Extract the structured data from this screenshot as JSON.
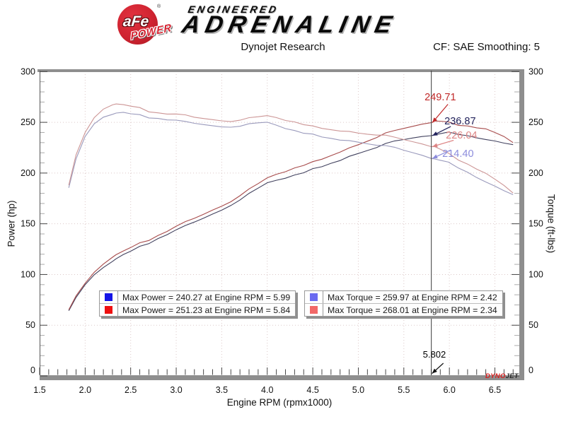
{
  "brand": {
    "circle_text": "aFe",
    "reg": "®",
    "banner_text": "POWER",
    "line1": "ENGINEERED",
    "line2": "ADRENALINE"
  },
  "header": {
    "title": "Dynojet Research",
    "right": "CF: SAE Smoothing: 5"
  },
  "watermark": {
    "part1": "DYNO",
    "part2": "JET",
    "color1": "#d81d1d",
    "color2": "#2a2a2a"
  },
  "legend": {
    "boxes": [
      {
        "rows": [
          {
            "swatch": "#1414e6",
            "label": "Max Power = 240.27 at Engine RPM = 5.99"
          },
          {
            "swatch": "#ee1010",
            "label": "Max Power = 251.23 at Engine RPM = 5.84"
          }
        ]
      },
      {
        "rows": [
          {
            "swatch": "#6a6af0",
            "label": "Max Torque = 259.97 at Engine RPM = 2.42"
          },
          {
            "swatch": "#f26868",
            "label": "Max Torque = 268.01 at Engine RPM = 2.34"
          }
        ]
      }
    ]
  },
  "chart_data": {
    "type": "line",
    "title": "Dynojet Research",
    "xlabel": "Engine RPM (rpmx1000)",
    "ylabel_left": "Power (hp)",
    "ylabel_right": "Torque (ft-lbs)",
    "xlim": [
      1.5,
      6.8
    ],
    "ylim": [
      0,
      300
    ],
    "x_ticks": [
      1.5,
      2.0,
      2.5,
      3.0,
      3.5,
      4.0,
      4.5,
      5.0,
      5.5,
      6.0,
      6.5
    ],
    "y_ticks": [
      0,
      50,
      100,
      150,
      200,
      250,
      300
    ],
    "grid": "dotted",
    "legend_position": "bottom-center",
    "x": [
      1.82,
      1.9,
      2.0,
      2.1,
      2.2,
      2.3,
      2.34,
      2.42,
      2.5,
      2.6,
      2.7,
      2.8,
      2.9,
      3.0,
      3.1,
      3.2,
      3.3,
      3.4,
      3.5,
      3.6,
      3.7,
      3.8,
      3.9,
      4.0,
      4.1,
      4.2,
      4.3,
      4.4,
      4.5,
      4.6,
      4.7,
      4.8,
      4.9,
      5.0,
      5.1,
      5.2,
      5.3,
      5.4,
      5.5,
      5.6,
      5.7,
      5.8,
      5.84,
      5.9,
      5.99,
      6.1,
      6.2,
      6.3,
      6.4,
      6.5,
      6.6,
      6.7
    ],
    "series": [
      {
        "name": "Max Power = 240.27 at Engine RPM = 5.99",
        "axis": "left",
        "unit": "hp",
        "legend_swatch": "#1414e6",
        "color": "#41415e",
        "max": 240.27,
        "max_at": 5.99,
        "values": [
          64.3,
          77.4,
          89.9,
          99.2,
          106.8,
          113.0,
          115.4,
          119.8,
          123.0,
          127.2,
          131.1,
          135.1,
          139.4,
          143.9,
          147.9,
          151.7,
          155.8,
          159.9,
          163.9,
          168.3,
          173.3,
          179.4,
          185.6,
          190.8,
          193.2,
          195.1,
          197.7,
          200.6,
          203.9,
          206.7,
          209.9,
          212.9,
          216.4,
          219.9,
          222.9,
          225.7,
          228.6,
          231.3,
          233.0,
          234.6,
          235.8,
          236.9,
          237.7,
          238.7,
          240.3,
          238.0,
          236.4,
          235.0,
          233.5,
          231.6,
          229.5,
          228.0
        ]
      },
      {
        "name": "Max Power = 251.23 at Engine RPM = 5.84",
        "axis": "left",
        "unit": "hp",
        "legend_swatch": "#ee1010",
        "color": "#a74b4b",
        "max": 251.23,
        "max_at": 5.84,
        "values": [
          65.2,
          78.9,
          91.4,
          101.6,
          110.2,
          117.1,
          119.4,
          123.3,
          126.6,
          130.7,
          134.2,
          138.1,
          142.6,
          147.4,
          151.7,
          155.4,
          159.6,
          163.8,
          167.9,
          172.0,
          177.5,
          183.8,
          190.1,
          195.7,
          199.1,
          201.5,
          204.7,
          207.8,
          210.8,
          214.1,
          217.5,
          221.2,
          224.8,
          228.5,
          232.1,
          235.6,
          239.0,
          241.6,
          244.0,
          246.1,
          248.0,
          249.7,
          251.2,
          251.0,
          250.3,
          247.0,
          246.0,
          244.9,
          244.0,
          240.0,
          236.0,
          230.0
        ]
      },
      {
        "name": "Max Torque = 259.97 at Engine RPM = 2.42",
        "axis": "right",
        "unit": "ft-lbs",
        "legend_swatch": "#6a6af0",
        "color": "#9a9abc",
        "max": 259.97,
        "max_at": 2.42,
        "values": [
          185.5,
          214,
          236,
          248,
          255,
          258,
          259,
          259.97,
          258.5,
          257,
          255,
          253.5,
          252.5,
          252,
          250.5,
          249,
          248,
          247,
          246,
          245.5,
          246,
          248,
          250,
          250.5,
          247.5,
          244,
          241.5,
          239.5,
          238,
          236,
          234.5,
          233,
          232,
          231,
          229.5,
          228,
          226.5,
          225,
          222.5,
          220,
          217.3,
          214.5,
          213.8,
          212.5,
          210.67,
          204.9,
          200.3,
          195.9,
          191.6,
          187.1,
          182.6,
          178.7
        ]
      },
      {
        "name": "Max Torque = 268.01 at Engine RPM = 2.34",
        "axis": "right",
        "unit": "ft-lbs",
        "legend_swatch": "#f26868",
        "color": "#cc9595",
        "max": 268.01,
        "max_at": 2.34,
        "values": [
          188,
          218,
          240,
          254,
          263,
          267.3,
          268.01,
          267.5,
          266,
          264,
          261,
          259,
          258.3,
          258,
          257,
          255,
          254,
          253,
          252,
          251,
          252,
          254,
          256,
          257,
          255,
          252,
          250,
          248,
          246,
          244.5,
          243,
          242,
          241,
          240,
          239,
          238,
          236.8,
          235,
          233,
          230.8,
          228.5,
          226.1,
          225.93,
          223.4,
          219.5,
          212.7,
          208.4,
          204.2,
          200.2,
          193.9,
          187.8,
          180.3
        ]
      }
    ],
    "cursor": {
      "rpm": 5.802,
      "label": "5.802",
      "readouts": [
        {
          "label": "249.71",
          "value": 249.71,
          "color": "#c02828"
        },
        {
          "label": "236.87",
          "value": 236.87,
          "color": "#23235c"
        },
        {
          "label": "226.04",
          "value": 226.04,
          "color": "#dd8484"
        },
        {
          "label": "214.40",
          "value": 214.4,
          "color": "#8c8cdc"
        }
      ]
    }
  }
}
